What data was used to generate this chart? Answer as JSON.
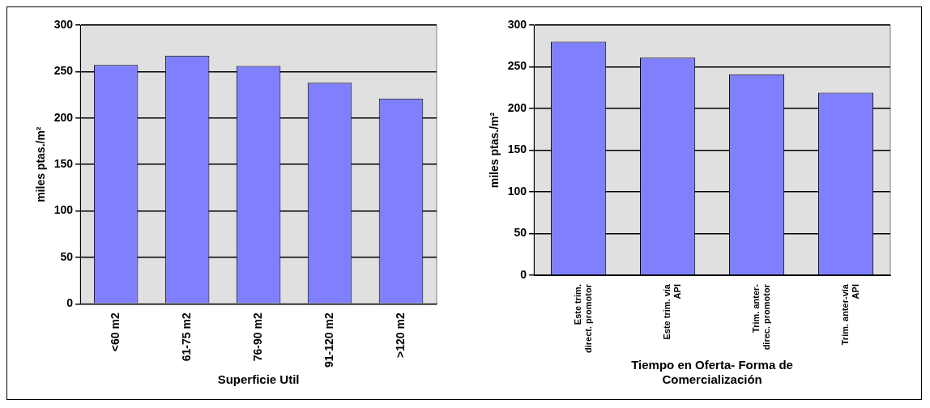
{
  "chart_data": [
    {
      "type": "bar",
      "xlabel": "Superficie Util",
      "ylabel": "miles ptas./m²",
      "categories": [
        "<60 m2",
        "61-75 m2",
        "76-90 m2",
        "91-120 m2",
        ">120 m2"
      ],
      "values": [
        257,
        267,
        256,
        238,
        221
      ],
      "color": "#8080ff",
      "ylim": [
        0,
        300
      ],
      "yticks": [
        0,
        50,
        100,
        150,
        200,
        250,
        300
      ],
      "grid": "y",
      "legend": false
    },
    {
      "type": "bar",
      "xlabel": "Tiempo en Oferta- Forma de Comercialización",
      "ylabel": "miles ptas./m²",
      "categories": [
        "Este trim. direct. promotor",
        "Este trim. vía API",
        "Trim. anter- direc. promotor",
        "Trim. anter-vía API"
      ],
      "values": [
        280,
        261,
        241,
        219
      ],
      "color": "#8080ff",
      "ylim": [
        0,
        300
      ],
      "yticks": [
        0,
        50,
        100,
        150,
        200,
        250,
        300
      ],
      "grid": "y",
      "legend": false
    }
  ]
}
